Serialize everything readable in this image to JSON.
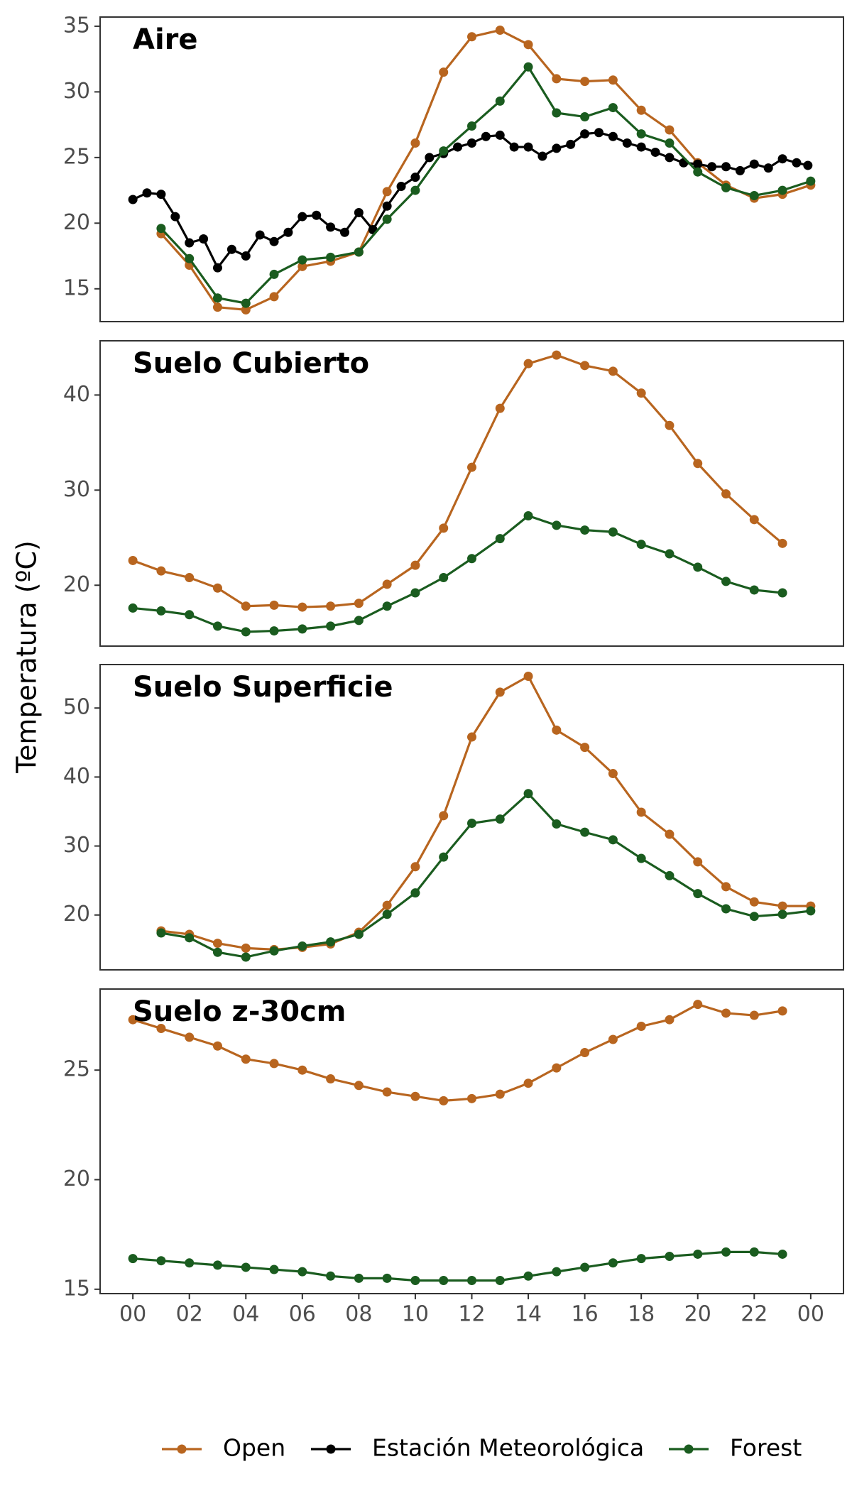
{
  "y_label": "Temperatura (ºC)",
  "chart_data": [
    {
      "type": "line",
      "title": "Aire",
      "xlim": [
        -1.16,
        25.16
      ],
      "ylim": [
        12.5,
        35.7
      ],
      "yticks": [
        15,
        20,
        25,
        30,
        35
      ],
      "series": [
        {
          "name": "Open",
          "color": "#b8651f",
          "x": [
            1,
            2,
            3,
            4,
            5,
            6,
            7,
            8,
            9,
            10,
            11,
            12,
            13,
            14,
            15,
            16,
            17,
            18,
            19,
            20,
            21,
            22,
            23,
            24
          ],
          "values": [
            19.2,
            16.8,
            13.6,
            13.4,
            14.4,
            16.7,
            17.1,
            17.8,
            22.4,
            26.1,
            31.5,
            34.2,
            34.7,
            33.6,
            31.0,
            30.8,
            30.9,
            28.6,
            27.1,
            24.6,
            22.9,
            21.9,
            22.2,
            22.9
          ]
        },
        {
          "name": "Estación Meteorológica",
          "color": "#000000",
          "x": [
            0,
            0.5,
            1,
            1.5,
            2,
            2.5,
            3,
            3.5,
            4,
            4.5,
            5,
            5.5,
            6,
            6.5,
            7,
            7.5,
            8,
            8.5,
            9,
            9.5,
            10,
            10.5,
            11,
            11.5,
            12,
            12.5,
            13,
            13.5,
            14,
            14.5,
            15,
            15.5,
            16,
            16.5,
            17,
            17.5,
            18,
            18.5,
            19,
            19.5,
            20,
            20.5,
            21,
            21.5,
            22,
            22.5,
            23,
            23.5,
            23.9
          ],
          "values": [
            21.8,
            22.3,
            22.2,
            20.5,
            18.5,
            18.8,
            16.6,
            18.0,
            17.5,
            19.1,
            18.6,
            19.3,
            20.5,
            20.6,
            19.7,
            19.3,
            20.8,
            19.5,
            21.3,
            22.8,
            23.5,
            25.0,
            25.3,
            25.8,
            26.1,
            26.6,
            26.7,
            25.8,
            25.8,
            25.1,
            25.7,
            26.0,
            26.8,
            26.9,
            26.6,
            26.1,
            25.8,
            25.4,
            25.0,
            24.6,
            24.5,
            24.3,
            24.3,
            24.0,
            24.5,
            24.2,
            24.9,
            24.6,
            24.4
          ]
        },
        {
          "name": "Forest",
          "color": "#1a5c1f",
          "x": [
            1,
            2,
            3,
            4,
            5,
            6,
            7,
            8,
            9,
            10,
            11,
            12,
            13,
            14,
            15,
            16,
            17,
            18,
            19,
            20,
            21,
            22,
            23,
            24
          ],
          "values": [
            19.6,
            17.3,
            14.3,
            13.9,
            16.1,
            17.2,
            17.4,
            17.8,
            20.3,
            22.5,
            25.5,
            27.4,
            29.3,
            31.9,
            28.4,
            28.1,
            28.8,
            26.8,
            26.1,
            23.9,
            22.7,
            22.1,
            22.5,
            23.2
          ]
        }
      ]
    },
    {
      "type": "line",
      "title": "Suelo Cubierto",
      "xlim": [
        -1.16,
        25.16
      ],
      "ylim": [
        13.6,
        45.7
      ],
      "yticks": [
        20,
        30,
        40
      ],
      "series": [
        {
          "name": "Open",
          "color": "#b8651f",
          "x": [
            0,
            1,
            2,
            3,
            4,
            5,
            6,
            7,
            8,
            9,
            10,
            11,
            12,
            13,
            14,
            15,
            16,
            17,
            18,
            19,
            20,
            21,
            22,
            23
          ],
          "values": [
            22.6,
            21.5,
            20.8,
            19.7,
            17.8,
            17.9,
            17.7,
            17.8,
            18.1,
            20.1,
            22.1,
            26.0,
            32.4,
            38.6,
            43.3,
            44.2,
            43.1,
            42.5,
            40.2,
            36.8,
            32.8,
            29.6,
            26.9,
            24.4
          ]
        },
        {
          "name": "Forest",
          "color": "#1a5c1f",
          "x": [
            0,
            1,
            2,
            3,
            4,
            5,
            6,
            7,
            8,
            9,
            10,
            11,
            12,
            13,
            14,
            15,
            16,
            17,
            18,
            19,
            20,
            21,
            22,
            23
          ],
          "values": [
            17.6,
            17.3,
            16.9,
            15.7,
            15.1,
            15.2,
            15.4,
            15.7,
            16.3,
            17.8,
            19.2,
            20.8,
            22.8,
            24.9,
            27.3,
            26.3,
            25.8,
            25.6,
            24.3,
            23.3,
            21.9,
            20.4,
            19.5,
            19.2
          ]
        }
      ]
    },
    {
      "type": "line",
      "title": "Suelo Superficie",
      "xlim": [
        -1.16,
        25.16
      ],
      "ylim": [
        12.05,
        56.3
      ],
      "yticks": [
        20,
        30,
        40,
        50
      ],
      "series": [
        {
          "name": "Open",
          "color": "#b8651f",
          "x": [
            1,
            2,
            3,
            4,
            5,
            6,
            7,
            8,
            9,
            10,
            11,
            12,
            13,
            14,
            15,
            16,
            17,
            18,
            19,
            20,
            21,
            22,
            23,
            24
          ],
          "values": [
            17.7,
            17.2,
            15.9,
            15.2,
            15.0,
            15.3,
            15.8,
            17.5,
            21.4,
            27.0,
            34.4,
            45.8,
            52.3,
            54.6,
            46.8,
            44.3,
            40.5,
            34.9,
            31.7,
            27.7,
            24.1,
            21.9,
            21.3,
            21.3
          ]
        },
        {
          "name": "Forest",
          "color": "#1a5c1f",
          "x": [
            1,
            2,
            3,
            4,
            5,
            6,
            7,
            8,
            9,
            10,
            11,
            12,
            13,
            14,
            15,
            16,
            17,
            18,
            19,
            20,
            21,
            22,
            23,
            24
          ],
          "values": [
            17.4,
            16.7,
            14.6,
            13.9,
            14.8,
            15.5,
            16.1,
            17.2,
            20.1,
            23.2,
            28.4,
            33.3,
            33.9,
            37.6,
            33.2,
            32.0,
            30.9,
            28.2,
            25.7,
            23.1,
            20.9,
            19.8,
            20.1,
            20.6
          ]
        }
      ]
    },
    {
      "type": "line",
      "title": "Suelo z-30cm",
      "xlim": [
        -1.16,
        25.16
      ],
      "ylim": [
        14.8,
        28.7
      ],
      "yticks": [
        15,
        20,
        25
      ],
      "xticks": [
        {
          "value": 0,
          "label": "00"
        },
        {
          "value": 2,
          "label": "02"
        },
        {
          "value": 4,
          "label": "04"
        },
        {
          "value": 6,
          "label": "06"
        },
        {
          "value": 8,
          "label": "08"
        },
        10,
        12,
        14,
        16,
        18,
        20,
        22,
        {
          "value": 24,
          "label": "00"
        }
      ],
      "series": [
        {
          "name": "Open",
          "color": "#b8651f",
          "x": [
            0,
            1,
            2,
            3,
            4,
            5,
            6,
            7,
            8,
            9,
            10,
            11,
            12,
            13,
            14,
            15,
            16,
            17,
            18,
            19,
            20,
            21,
            22,
            23
          ],
          "values": [
            27.3,
            26.9,
            26.5,
            26.1,
            25.5,
            25.3,
            25.0,
            24.6,
            24.3,
            24.0,
            23.8,
            23.6,
            23.7,
            23.9,
            24.4,
            25.1,
            25.8,
            26.4,
            27.0,
            27.3,
            28.0,
            27.6,
            27.5,
            27.7
          ]
        },
        {
          "name": "Forest",
          "color": "#1a5c1f",
          "x": [
            0,
            1,
            2,
            3,
            4,
            5,
            6,
            7,
            8,
            9,
            10,
            11,
            12,
            13,
            14,
            15,
            16,
            17,
            18,
            19,
            20,
            21,
            22,
            23
          ],
          "values": [
            16.4,
            16.3,
            16.2,
            16.1,
            16.0,
            15.9,
            15.8,
            15.6,
            15.5,
            15.5,
            15.4,
            15.4,
            15.4,
            15.4,
            15.6,
            15.8,
            16.0,
            16.2,
            16.4,
            16.5,
            16.6,
            16.7,
            16.7,
            16.6
          ]
        }
      ]
    }
  ]
}
